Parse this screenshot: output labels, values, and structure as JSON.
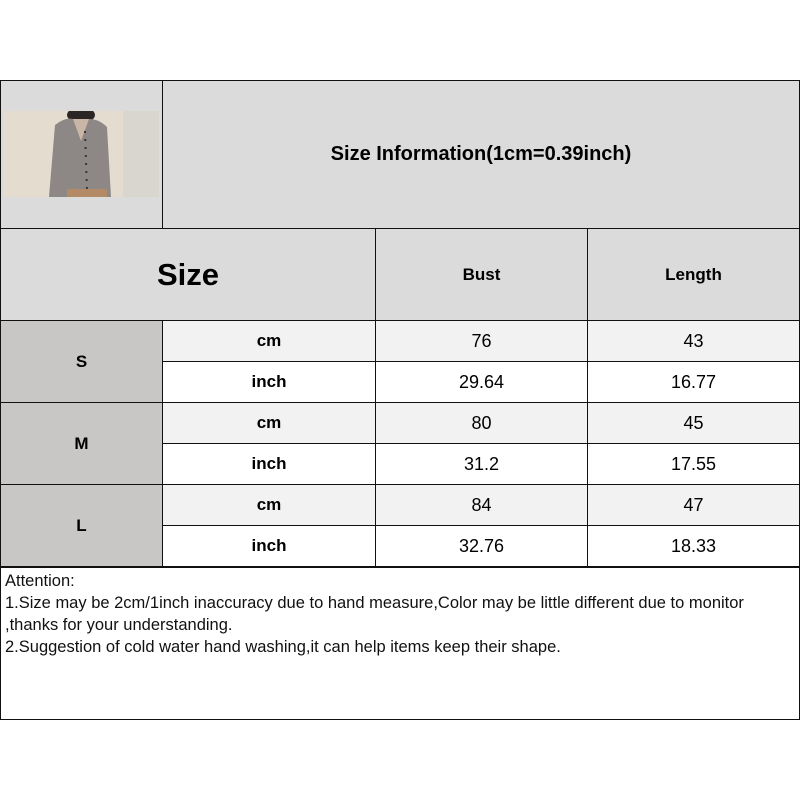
{
  "title": "Size Information(1cm=0.39inch)",
  "header": {
    "size_label": "Size",
    "columns": [
      "Bust",
      "Length"
    ]
  },
  "rows": [
    {
      "size": "S",
      "cm": {
        "unit": "cm",
        "bust": "76",
        "length": "43"
      },
      "inch": {
        "unit": "inch",
        "bust": "29.64",
        "length": "16.77"
      }
    },
    {
      "size": "M",
      "cm": {
        "unit": "cm",
        "bust": "80",
        "length": "45"
      },
      "inch": {
        "unit": "inch",
        "bust": "31.2",
        "length": "17.55"
      }
    },
    {
      "size": "L",
      "cm": {
        "unit": "cm",
        "bust": "84",
        "length": "47"
      },
      "inch": {
        "unit": "inch",
        "bust": "32.76",
        "length": "18.33"
      }
    }
  ],
  "notes": {
    "heading": "Attention:",
    "line1": "1.Size may be 2cm/1inch inaccuracy due to hand measure,Color may be little different due to monitor ,thanks for your understanding.",
    "line2": "2.Suggestion of cold water hand washing,it can help items keep their shape."
  },
  "product_image": "gray ribbed button cardigan"
}
